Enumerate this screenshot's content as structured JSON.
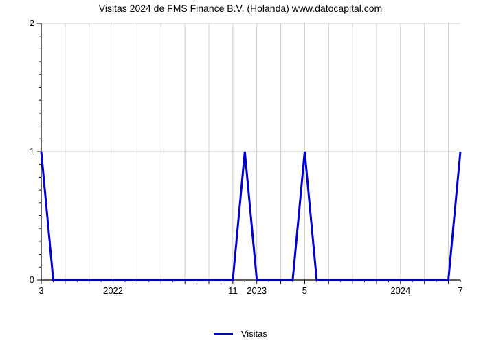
{
  "chart": {
    "type": "line",
    "title": "Visitas 2024 de FMS Finance B.V. (Holanda) www.datocapital.com",
    "title_fontsize": 14,
    "title_color": "#000000",
    "background_color": "#ffffff",
    "plot_background": "#ffffff",
    "grid_color": "#cccccc",
    "grid_linewidth": 1,
    "axis_line_color": "#000000",
    "series": {
      "name": "Visitas",
      "color": "#0000d0",
      "linewidth": 3,
      "x": [
        0,
        1,
        2,
        3,
        4,
        5,
        6,
        7,
        8,
        9,
        10,
        11,
        12,
        13,
        14,
        15,
        16,
        17,
        18,
        19,
        20,
        21,
        22,
        23,
        24,
        25,
        26,
        27,
        28,
        29,
        30,
        31,
        32,
        33,
        34,
        35
      ],
      "y": [
        1,
        0,
        0,
        0,
        0,
        0,
        0,
        0,
        0,
        0,
        0,
        0,
        0,
        0,
        0,
        0,
        0,
        1,
        0,
        0,
        0,
        0,
        1,
        0,
        0,
        0,
        0,
        0,
        0,
        0,
        0,
        0,
        0,
        0,
        0,
        1
      ]
    },
    "x_axis": {
      "min": 0,
      "max": 35,
      "grid_ticks": [
        0,
        2,
        4,
        6,
        8,
        10,
        12,
        14,
        16,
        18,
        20,
        22,
        24,
        26,
        28,
        30,
        32,
        34
      ],
      "minor_ticks": [
        1,
        3,
        5,
        7,
        9,
        11,
        13,
        15,
        17,
        19,
        21,
        23,
        25,
        27,
        29,
        31,
        33,
        35
      ],
      "labels": [
        {
          "pos": 0,
          "text": "3"
        },
        {
          "pos": 6,
          "text": "2022"
        },
        {
          "pos": 16,
          "text": "11"
        },
        {
          "pos": 18,
          "text": "2023"
        },
        {
          "pos": 22,
          "text": "5"
        },
        {
          "pos": 30,
          "text": "2024"
        },
        {
          "pos": 35,
          "text": "7"
        }
      ]
    },
    "y_axis": {
      "min": 0,
      "max": 2,
      "grid_ticks": [
        0,
        1,
        2
      ],
      "minor_ticks": [
        0.1,
        0.2,
        0.3,
        0.4,
        0.5,
        0.6,
        0.7,
        0.8,
        0.9,
        1.1,
        1.2,
        1.3,
        1.4,
        1.5,
        1.6,
        1.7,
        1.8,
        1.9
      ],
      "labels": [
        {
          "pos": 0,
          "text": "0"
        },
        {
          "pos": 1,
          "text": "1"
        },
        {
          "pos": 2,
          "text": "2"
        }
      ]
    },
    "legend": {
      "label": "Visitas",
      "swatch_color": "#0000d0"
    }
  }
}
